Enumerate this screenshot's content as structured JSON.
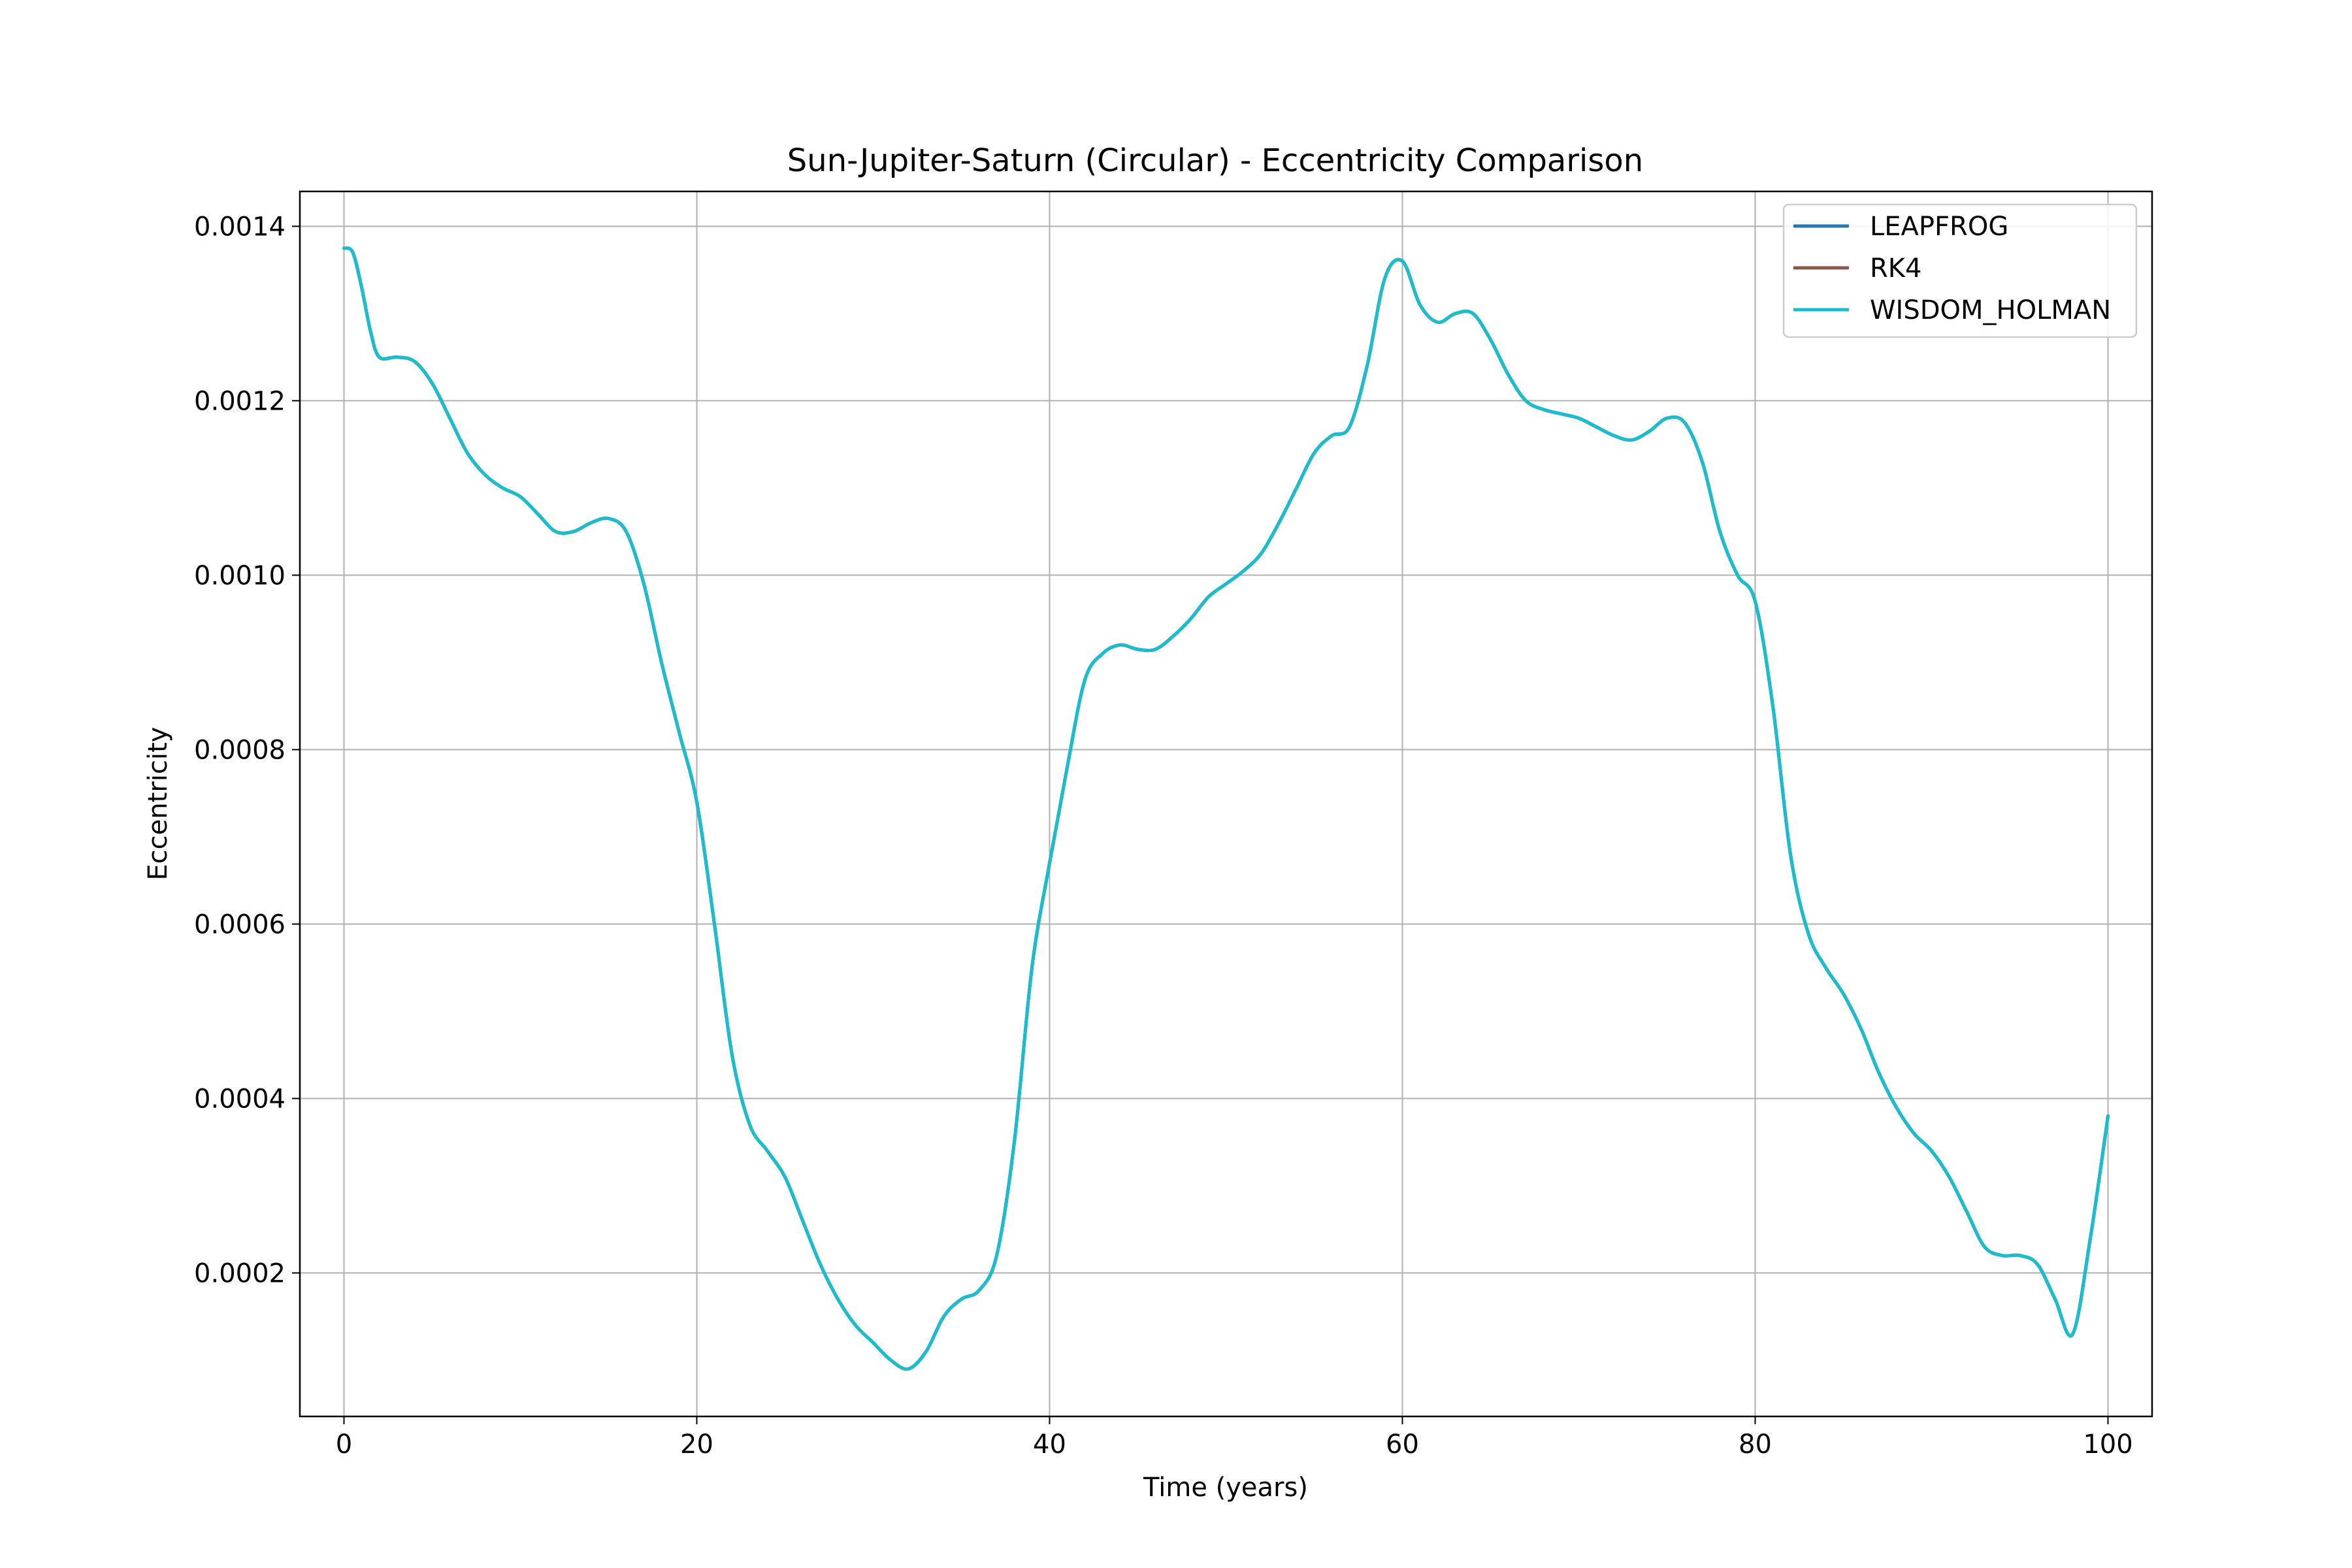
{
  "chart_data": {
    "type": "line",
    "title": "Sun-Jupiter-Saturn (Circular) - Eccentricity Comparison",
    "xlabel": "Time (years)",
    "ylabel": "Eccentricity",
    "xlim": [
      -2.5,
      102.5
    ],
    "ylim": [
      3.55e-05,
      0.00144
    ],
    "xticks": [
      0,
      20,
      40,
      60,
      80,
      100
    ],
    "xtick_labels": [
      "0",
      "20",
      "40",
      "60",
      "80",
      "100"
    ],
    "yticks": [
      0.0002,
      0.0004,
      0.0006,
      0.0008,
      0.001,
      0.0012,
      0.0014
    ],
    "ytick_labels": [
      "0.0002",
      "0.0004",
      "0.0006",
      "0.0008",
      "0.0010",
      "0.0012",
      "0.0014"
    ],
    "grid": true,
    "legend_position": "top-right",
    "x": [
      0,
      0.5,
      1,
      1.5,
      2,
      3,
      4,
      5,
      6,
      7,
      8,
      9,
      10,
      11,
      12,
      13,
      14,
      15,
      16,
      17,
      18,
      19,
      20,
      21,
      22,
      23,
      24,
      25,
      26,
      27,
      28,
      29,
      30,
      31,
      32,
      33,
      34,
      35,
      36,
      37,
      38,
      39,
      40,
      41,
      42,
      43,
      44,
      45,
      46,
      47,
      48,
      49,
      50,
      51,
      52,
      53,
      54,
      55,
      56,
      57,
      58,
      59,
      60,
      61,
      62,
      63,
      64,
      65,
      66,
      67,
      68,
      69,
      70,
      71,
      72,
      73,
      74,
      75,
      76,
      77,
      78,
      79,
      80,
      81,
      82,
      83,
      84,
      85,
      86,
      87,
      88,
      89,
      90,
      91,
      92,
      93,
      94,
      95,
      96,
      97,
      98,
      99,
      100
    ],
    "series": [
      {
        "name": "LEAPFROG",
        "color": "#1f77b4",
        "values": [
          0.001375,
          0.00137,
          0.00133,
          0.00128,
          0.00125,
          0.00125,
          0.001245,
          0.00122,
          0.00118,
          0.00114,
          0.001115,
          0.0011,
          0.00109,
          0.00107,
          0.00105,
          0.00105,
          0.00106,
          0.001065,
          0.00105,
          0.00099,
          0.0009,
          0.00082,
          0.00074,
          0.0006,
          0.00045,
          0.00037,
          0.00034,
          0.00031,
          0.00026,
          0.00021,
          0.00017,
          0.00014,
          0.00012,
          0.0001,
          9e-05,
          0.00011,
          0.00015,
          0.00017,
          0.00018,
          0.00022,
          0.00035,
          0.00055,
          0.00067,
          0.00078,
          0.00088,
          0.00091,
          0.00092,
          0.000915,
          0.000915,
          0.00093,
          0.00095,
          0.000975,
          0.00099,
          0.001005,
          0.001025,
          0.00106,
          0.0011,
          0.00114,
          0.00116,
          0.00117,
          0.00124,
          0.00134,
          0.00136,
          0.00131,
          0.00129,
          0.0013,
          0.0013,
          0.00127,
          0.00123,
          0.0012,
          0.00119,
          0.001185,
          0.00118,
          0.00117,
          0.00116,
          0.001155,
          0.001165,
          0.00118,
          0.001175,
          0.00113,
          0.00105,
          0.001,
          0.00097,
          0.00085,
          0.00068,
          0.00059,
          0.00055,
          0.00052,
          0.00048,
          0.00043,
          0.00039,
          0.00036,
          0.00034,
          0.00031,
          0.00027,
          0.00023,
          0.00022,
          0.00022,
          0.00021,
          0.00017,
          0.00013,
          0.00024,
          0.00038
        ]
      },
      {
        "name": "RK4",
        "color": "#8c564b",
        "values": [
          0.001375,
          0.00137,
          0.00133,
          0.00128,
          0.00125,
          0.00125,
          0.001245,
          0.00122,
          0.00118,
          0.00114,
          0.001115,
          0.0011,
          0.00109,
          0.00107,
          0.00105,
          0.00105,
          0.00106,
          0.001065,
          0.00105,
          0.00099,
          0.0009,
          0.00082,
          0.00074,
          0.0006,
          0.00045,
          0.00037,
          0.00034,
          0.00031,
          0.00026,
          0.00021,
          0.00017,
          0.00014,
          0.00012,
          0.0001,
          9e-05,
          0.00011,
          0.00015,
          0.00017,
          0.00018,
          0.00022,
          0.00035,
          0.00055,
          0.00067,
          0.00078,
          0.00088,
          0.00091,
          0.00092,
          0.000915,
          0.000915,
          0.00093,
          0.00095,
          0.000975,
          0.00099,
          0.001005,
          0.001025,
          0.00106,
          0.0011,
          0.00114,
          0.00116,
          0.00117,
          0.00124,
          0.00134,
          0.00136,
          0.00131,
          0.00129,
          0.0013,
          0.0013,
          0.00127,
          0.00123,
          0.0012,
          0.00119,
          0.001185,
          0.00118,
          0.00117,
          0.00116,
          0.001155,
          0.001165,
          0.00118,
          0.001175,
          0.00113,
          0.00105,
          0.001,
          0.00097,
          0.00085,
          0.00068,
          0.00059,
          0.00055,
          0.00052,
          0.00048,
          0.00043,
          0.00039,
          0.00036,
          0.00034,
          0.00031,
          0.00027,
          0.00023,
          0.00022,
          0.00022,
          0.00021,
          0.00017,
          0.00013,
          0.00024,
          0.00038
        ]
      },
      {
        "name": "WISDOM_HOLMAN",
        "color": "#17becf",
        "values": [
          0.001375,
          0.00137,
          0.00133,
          0.00128,
          0.00125,
          0.00125,
          0.001245,
          0.00122,
          0.00118,
          0.00114,
          0.001115,
          0.0011,
          0.00109,
          0.00107,
          0.00105,
          0.00105,
          0.00106,
          0.001065,
          0.00105,
          0.00099,
          0.0009,
          0.00082,
          0.00074,
          0.0006,
          0.00045,
          0.00037,
          0.00034,
          0.00031,
          0.00026,
          0.00021,
          0.00017,
          0.00014,
          0.00012,
          0.0001,
          9e-05,
          0.00011,
          0.00015,
          0.00017,
          0.00018,
          0.00022,
          0.00035,
          0.00055,
          0.00067,
          0.00078,
          0.00088,
          0.00091,
          0.00092,
          0.000915,
          0.000915,
          0.00093,
          0.00095,
          0.000975,
          0.00099,
          0.001005,
          0.001025,
          0.00106,
          0.0011,
          0.00114,
          0.00116,
          0.00117,
          0.00124,
          0.00134,
          0.00136,
          0.00131,
          0.00129,
          0.0013,
          0.0013,
          0.00127,
          0.00123,
          0.0012,
          0.00119,
          0.001185,
          0.00118,
          0.00117,
          0.00116,
          0.001155,
          0.001165,
          0.00118,
          0.001175,
          0.00113,
          0.00105,
          0.001,
          0.00097,
          0.00085,
          0.00068,
          0.00059,
          0.00055,
          0.00052,
          0.00048,
          0.00043,
          0.00039,
          0.00036,
          0.00034,
          0.00031,
          0.00027,
          0.00023,
          0.00022,
          0.00022,
          0.00021,
          0.00017,
          0.00013,
          0.00024,
          0.00038
        ]
      }
    ]
  }
}
